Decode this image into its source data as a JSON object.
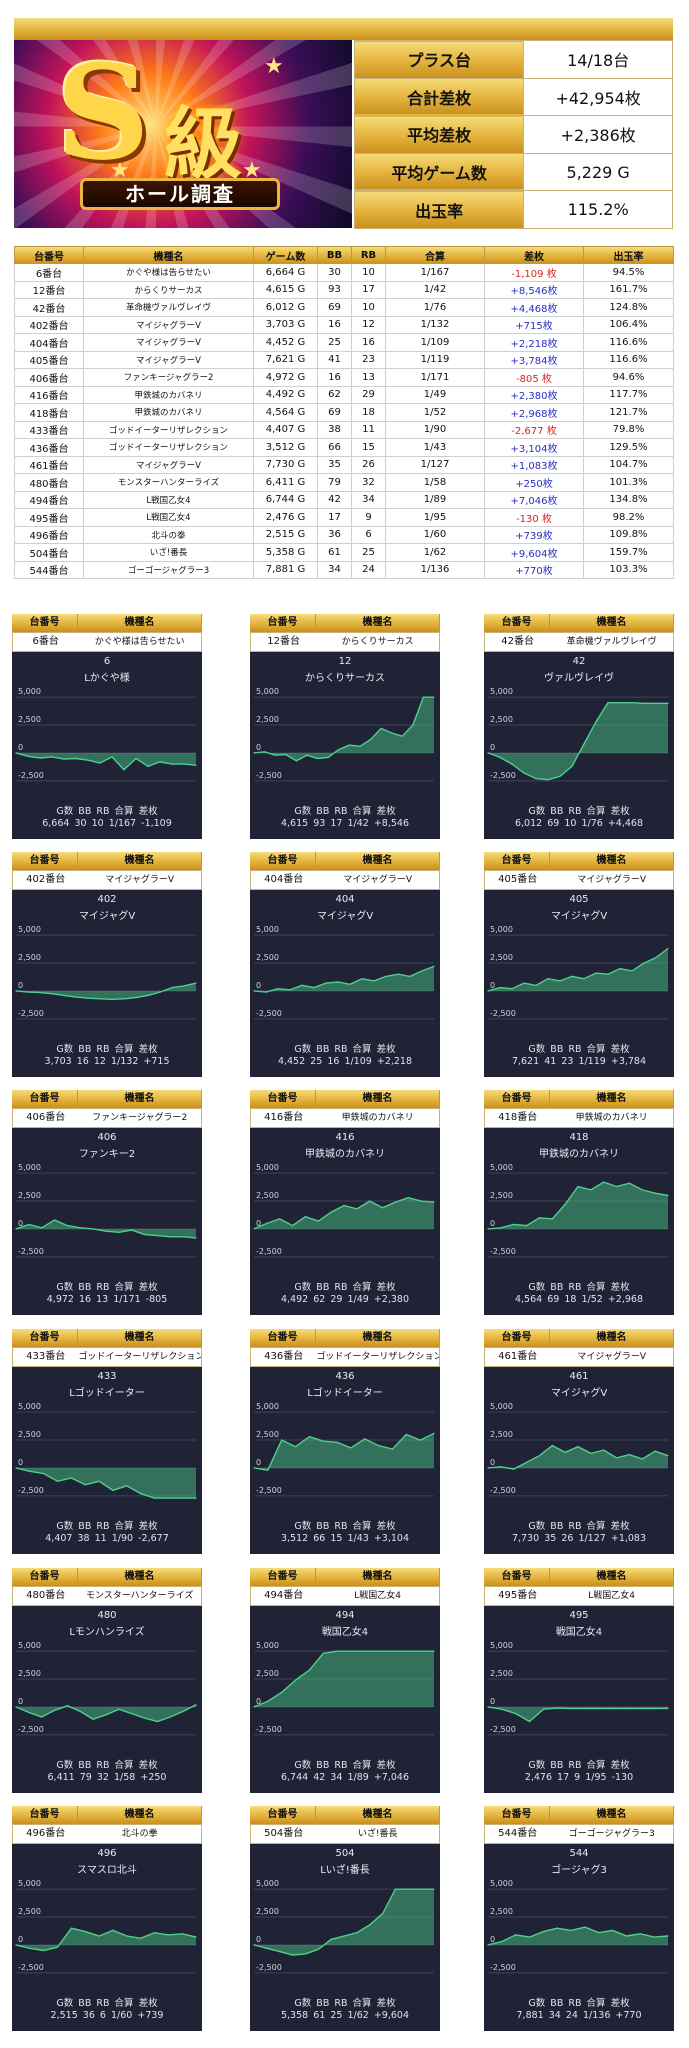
{
  "summary": {
    "rows": [
      {
        "label": "プラス台",
        "value": "14/18台"
      },
      {
        "label": "合計差枚",
        "value": "+42,954枚"
      },
      {
        "label": "平均差枚",
        "value": "+2,386枚"
      },
      {
        "label": "平均ゲーム数",
        "value": "5,229 G"
      },
      {
        "label": "出玉率",
        "value": "115.2%"
      }
    ]
  },
  "banner": {
    "s_text": "S",
    "kyu_text": "級",
    "ribbon_text": "ホール調査"
  },
  "table": {
    "headers": [
      "台番号",
      "機種名",
      "ゲーム数",
      "BB",
      "RB",
      "合算",
      "差枚",
      "出玉率"
    ],
    "rows": [
      [
        "6番台",
        "かぐや様は告らせたい",
        "6,664 G",
        "30",
        "10",
        "1/167",
        "-1,109 枚",
        "94.5%"
      ],
      [
        "12番台",
        "からくりサーカス",
        "4,615 G",
        "93",
        "17",
        "1/42",
        "+8,546枚",
        "161.7%"
      ],
      [
        "42番台",
        "革命機ヴァルヴレイヴ",
        "6,012 G",
        "69",
        "10",
        "1/76",
        "+4,468枚",
        "124.8%"
      ],
      [
        "402番台",
        "マイジャグラーV",
        "3,703 G",
        "16",
        "12",
        "1/132",
        "+715枚",
        "106.4%"
      ],
      [
        "404番台",
        "マイジャグラーV",
        "4,452 G",
        "25",
        "16",
        "1/109",
        "+2,218枚",
        "116.6%"
      ],
      [
        "405番台",
        "マイジャグラーV",
        "7,621 G",
        "41",
        "23",
        "1/119",
        "+3,784枚",
        "116.6%"
      ],
      [
        "406番台",
        "ファンキージャグラー2",
        "4,972 G",
        "16",
        "13",
        "1/171",
        "-805 枚",
        "94.6%"
      ],
      [
        "416番台",
        "甲鉄城のカバネリ",
        "4,492 G",
        "62",
        "29",
        "1/49",
        "+2,380枚",
        "117.7%"
      ],
      [
        "418番台",
        "甲鉄城のカバネリ",
        "4,564 G",
        "69",
        "18",
        "1/52",
        "+2,968枚",
        "121.7%"
      ],
      [
        "433番台",
        "ゴッドイーターリザレクション",
        "4,407 G",
        "38",
        "11",
        "1/90",
        "-2,677 枚",
        "79.8%"
      ],
      [
        "436番台",
        "ゴッドイーターリザレクション",
        "3,512 G",
        "66",
        "15",
        "1/43",
        "+3,104枚",
        "129.5%"
      ],
      [
        "461番台",
        "マイジャグラーV",
        "7,730 G",
        "35",
        "26",
        "1/127",
        "+1,083枚",
        "104.7%"
      ],
      [
        "480番台",
        "モンスターハンターライズ",
        "6,411 G",
        "79",
        "32",
        "1/58",
        "+250枚",
        "101.3%"
      ],
      [
        "494番台",
        "L戦国乙女4",
        "6,744 G",
        "42",
        "34",
        "1/89",
        "+7,046枚",
        "134.8%"
      ],
      [
        "495番台",
        "L戦国乙女4",
        "2,476 G",
        "17",
        "9",
        "1/95",
        "-130 枚",
        "98.2%"
      ],
      [
        "496番台",
        "北斗の拳",
        "2,515 G",
        "36",
        "6",
        "1/60",
        "+739枚",
        "109.8%"
      ],
      [
        "504番台",
        "いざ!番長",
        "5,358 G",
        "61",
        "25",
        "1/62",
        "+9,604枚",
        "159.7%"
      ],
      [
        "544番台",
        "ゴーゴージャグラー3",
        "7,881 G",
        "34",
        "24",
        "1/136",
        "+770枚",
        "103.3%"
      ]
    ]
  },
  "card_headers": {
    "col1": "台番号",
    "col2": "機種名"
  },
  "panel_labels": {
    "g": "G数",
    "bb": "BB",
    "rb": "RB",
    "combined": "合算",
    "diff": "差枚"
  },
  "axis_ticks": [
    "5,000",
    "2,500",
    "0",
    "-2,500"
  ],
  "colors": {
    "gold": "#e3b23c",
    "panel": "#1f2335",
    "line": "#4ed08c",
    "neg": "#d7261e",
    "pos": "#2b2dc4"
  },
  "chart_data": [
    {
      "type": "area",
      "unit": "6番台",
      "machine": "かぐや様は告らせたい",
      "number": "6",
      "short_name": "Lかぐや様",
      "ylim": [
        -3500,
        6000
      ],
      "g": "6,664",
      "bb": "30",
      "rb": "10",
      "combined": "1/167",
      "diff": "-1,109",
      "values": [
        0,
        -300,
        -450,
        -350,
        -550,
        -500,
        -650,
        -900,
        -350,
        -1500,
        -500,
        -1200,
        -800,
        -1000,
        -1000,
        -1100
      ]
    },
    {
      "type": "area",
      "unit": "12番台",
      "machine": "からくりサーカス",
      "number": "12",
      "short_name": "からくりサーカス",
      "ylim": [
        -3500,
        6000
      ],
      "g": "4,615",
      "bb": "93",
      "rb": "17",
      "combined": "1/42",
      "diff": "+8,546",
      "values": [
        0,
        100,
        -200,
        -150,
        -700,
        -200,
        -500,
        -400,
        300,
        700,
        600,
        1200,
        2200,
        1800,
        1500,
        2500,
        5000,
        5000
      ]
    },
    {
      "type": "area",
      "unit": "42番台",
      "machine": "革命機ヴァルヴレイヴ",
      "number": "42",
      "short_name": "ヴァルヴレイヴ",
      "ylim": [
        -3500,
        6000
      ],
      "g": "6,012",
      "bb": "69",
      "rb": "10",
      "combined": "1/76",
      "diff": "+4,468",
      "values": [
        0,
        -400,
        -1000,
        -1800,
        -2300,
        -2400,
        -2100,
        -1200,
        800,
        2800,
        4500,
        4500,
        4500,
        4450,
        4450,
        4450
      ]
    },
    {
      "type": "area",
      "unit": "402番台",
      "machine": "マイジャグラーV",
      "number": "402",
      "short_name": "マイジャグV",
      "ylim": [
        -3500,
        6000
      ],
      "g": "3,703",
      "bb": "16",
      "rb": "12",
      "combined": "1/132",
      "diff": "+715",
      "values": [
        0,
        -100,
        -150,
        -250,
        -400,
        -550,
        -650,
        -700,
        -750,
        -700,
        -600,
        -400,
        -100,
        300,
        450,
        700
      ]
    },
    {
      "type": "area",
      "unit": "404番台",
      "machine": "マイジャグラーV",
      "number": "404",
      "short_name": "マイジャグV",
      "ylim": [
        -3500,
        6000
      ],
      "g": "4,452",
      "bb": "25",
      "rb": "16",
      "combined": "1/109",
      "diff": "+2,218",
      "values": [
        0,
        -100,
        200,
        100,
        500,
        300,
        700,
        800,
        600,
        1100,
        900,
        1300,
        1500,
        1300,
        1800,
        2200
      ]
    },
    {
      "type": "area",
      "unit": "405番台",
      "machine": "マイジャグラーV",
      "number": "405",
      "short_name": "マイジャグV",
      "ylim": [
        -3500,
        6000
      ],
      "g": "7,621",
      "bb": "41",
      "rb": "23",
      "combined": "1/119",
      "diff": "+3,784",
      "values": [
        0,
        300,
        200,
        700,
        500,
        1100,
        900,
        1300,
        1100,
        1600,
        1500,
        2000,
        1800,
        2500,
        3000,
        3800
      ]
    },
    {
      "type": "area",
      "unit": "406番台",
      "machine": "ファンキージャグラー2",
      "number": "406",
      "short_name": "ファンキー2",
      "ylim": [
        -3500,
        6000
      ],
      "g": "4,972",
      "bb": "16",
      "rb": "13",
      "combined": "1/171",
      "diff": "-805",
      "values": [
        0,
        400,
        100,
        800,
        300,
        100,
        0,
        -200,
        -300,
        -100,
        -500,
        -600,
        -700,
        -700,
        -800
      ]
    },
    {
      "type": "area",
      "unit": "416番台",
      "machine": "甲鉄城のカバネリ",
      "number": "416",
      "short_name": "甲鉄城のカバネリ",
      "ylim": [
        -3500,
        6000
      ],
      "g": "4,492",
      "bb": "62",
      "rb": "29",
      "combined": "1/49",
      "diff": "+2,380",
      "values": [
        0,
        500,
        900,
        300,
        1100,
        700,
        1500,
        2100,
        1800,
        2500,
        1900,
        2400,
        2800,
        2500,
        2400
      ]
    },
    {
      "type": "area",
      "unit": "418番台",
      "machine": "甲鉄城のカバネリ",
      "number": "418",
      "short_name": "甲鉄城のカバネリ",
      "ylim": [
        -3500,
        6000
      ],
      "g": "4,564",
      "bb": "69",
      "rb": "18",
      "combined": "1/52",
      "diff": "+2,968",
      "values": [
        0,
        100,
        400,
        300,
        1000,
        900,
        2200,
        3800,
        3500,
        4200,
        3800,
        4100,
        3500,
        3200,
        3000
      ]
    },
    {
      "type": "area",
      "unit": "433番台",
      "machine": "ゴッドイーターリザレクション",
      "number": "433",
      "short_name": "Lゴッドイーター",
      "ylim": [
        -3500,
        6000
      ],
      "g": "4,407",
      "bb": "38",
      "rb": "11",
      "combined": "1/90",
      "diff": "-2,677",
      "values": [
        0,
        -300,
        -500,
        -1200,
        -900,
        -1500,
        -1200,
        -2000,
        -1600,
        -2300,
        -2700,
        -2700,
        -2700,
        -2700
      ]
    },
    {
      "type": "area",
      "unit": "436番台",
      "machine": "ゴッドイーターリザレクション",
      "number": "436",
      "short_name": "Lゴッドイーター",
      "ylim": [
        -3500,
        6000
      ],
      "g": "3,512",
      "bb": "66",
      "rb": "15",
      "combined": "1/43",
      "diff": "+3,104",
      "values": [
        0,
        -200,
        2500,
        1900,
        2800,
        2400,
        2300,
        1800,
        2600,
        2000,
        1700,
        3000,
        2500,
        3100
      ]
    },
    {
      "type": "area",
      "unit": "461番台",
      "machine": "マイジャグラーV",
      "number": "461",
      "short_name": "マイジャグV",
      "ylim": [
        -3500,
        6000
      ],
      "g": "7,730",
      "bb": "35",
      "rb": "26",
      "combined": "1/127",
      "diff": "+1,083",
      "values": [
        0,
        100,
        -100,
        500,
        1100,
        2000,
        1400,
        1900,
        1300,
        1600,
        900,
        1200,
        800,
        1500,
        1100
      ]
    },
    {
      "type": "area",
      "unit": "480番台",
      "machine": "モンスターハンターライズ",
      "number": "480",
      "short_name": "Lモンハンライズ",
      "ylim": [
        -3500,
        6000
      ],
      "g": "6,411",
      "bb": "79",
      "rb": "32",
      "combined": "1/58",
      "diff": "+250",
      "values": [
        0,
        -500,
        -900,
        -300,
        100,
        -400,
        -1100,
        -700,
        -200,
        -600,
        -1000,
        -1300,
        -900,
        -400,
        200
      ]
    },
    {
      "type": "area",
      "unit": "494番台",
      "machine": "L戦国乙女4",
      "number": "494",
      "short_name": "戦国乙女4",
      "ylim": [
        -3500,
        6000
      ],
      "g": "6,744",
      "bb": "42",
      "rb": "34",
      "combined": "1/89",
      "diff": "+7,046",
      "values": [
        0,
        500,
        1300,
        2400,
        3300,
        4800,
        5000,
        5000,
        5000,
        5000,
        5000,
        5000,
        5000,
        5000
      ]
    },
    {
      "type": "area",
      "unit": "495番台",
      "machine": "L戦国乙女4",
      "number": "495",
      "short_name": "戦国乙女4",
      "ylim": [
        -3500,
        6000
      ],
      "g": "2,476",
      "bb": "17",
      "rb": "9",
      "combined": "1/95",
      "diff": "-130",
      "values": [
        0,
        -200,
        -600,
        -1300,
        -200,
        -100,
        -150,
        -150,
        -150,
        -150,
        -150,
        -150,
        -150,
        -130
      ]
    },
    {
      "type": "area",
      "unit": "496番台",
      "machine": "北斗の拳",
      "number": "496",
      "short_name": "スマスロ北斗",
      "ylim": [
        -3500,
        6000
      ],
      "g": "2,515",
      "bb": "36",
      "rb": "6",
      "combined": "1/60",
      "diff": "+739",
      "values": [
        0,
        -300,
        -500,
        -200,
        1500,
        1200,
        800,
        1300,
        800,
        600,
        1100,
        900,
        1000,
        700
      ]
    },
    {
      "type": "area",
      "unit": "504番台",
      "machine": "いざ!番長",
      "number": "504",
      "short_name": "Lいざ!番長",
      "ylim": [
        -3500,
        6000
      ],
      "g": "5,358",
      "bb": "61",
      "rb": "25",
      "combined": "1/62",
      "diff": "+9,604",
      "values": [
        0,
        -300,
        -600,
        -900,
        -800,
        -400,
        500,
        800,
        1100,
        1800,
        2800,
        5000,
        5000,
        5000,
        5000
      ]
    },
    {
      "type": "area",
      "unit": "544番台",
      "machine": "ゴーゴージャグラー3",
      "number": "544",
      "short_name": "ゴージャグ3",
      "ylim": [
        -3500,
        6000
      ],
      "g": "7,881",
      "bb": "34",
      "rb": "24",
      "combined": "1/136",
      "diff": "+770",
      "values": [
        0,
        300,
        900,
        700,
        1200,
        1500,
        1300,
        1600,
        1100,
        1300,
        800,
        1000,
        700,
        800
      ]
    }
  ]
}
